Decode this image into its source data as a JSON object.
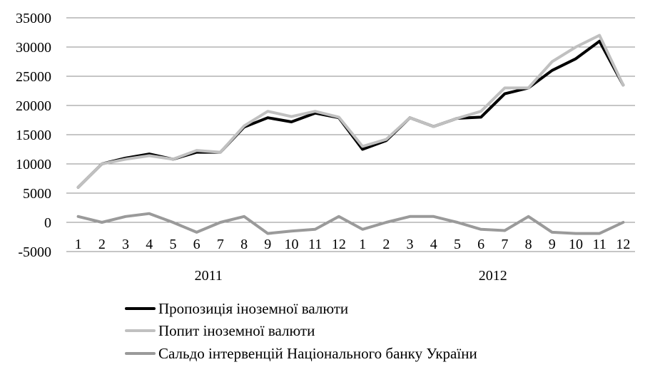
{
  "chart_data": {
    "type": "line",
    "categories": [
      "1",
      "2",
      "3",
      "4",
      "5",
      "6",
      "7",
      "8",
      "9",
      "10",
      "11",
      "12",
      "1",
      "2",
      "3",
      "4",
      "5",
      "6",
      "7",
      "8",
      "9",
      "10",
      "11",
      "12"
    ],
    "group_labels": [
      "2011",
      "2012"
    ],
    "ylim": [
      -5000,
      35000
    ],
    "yticks": [
      -5000,
      0,
      5000,
      10000,
      15000,
      20000,
      25000,
      30000,
      35000
    ],
    "grid": "horizontal",
    "legend_position": "bottom",
    "series": [
      {
        "name": "Пропозиція іноземної валюти",
        "color": "#000000",
        "values": [
          6000,
          10000,
          11000,
          11700,
          10800,
          12000,
          12000,
          16300,
          17900,
          17200,
          18700,
          17900,
          12500,
          14000,
          17900,
          16400,
          17800,
          18000,
          22000,
          23000,
          26000,
          28000,
          31000,
          23500
        ]
      },
      {
        "name": "Попит іноземної валюти",
        "color": "#c0c0c0",
        "values": [
          6000,
          10000,
          10800,
          11400,
          10800,
          12300,
          12000,
          16500,
          19000,
          18100,
          19000,
          18000,
          13000,
          14200,
          17900,
          16400,
          17800,
          19000,
          23000,
          23000,
          27500,
          30000,
          32000,
          23500
        ]
      },
      {
        "name": "Сальдо інтервенцій Національного банку України",
        "color": "#9a9a9a",
        "values": [
          1000,
          0,
          1000,
          1500,
          0,
          -1700,
          0,
          1000,
          -1900,
          -1500,
          -1200,
          1000,
          -1200,
          0,
          1000,
          1000,
          0,
          -1200,
          -1400,
          1000,
          -1700,
          -1900,
          -1900,
          0
        ]
      }
    ]
  }
}
